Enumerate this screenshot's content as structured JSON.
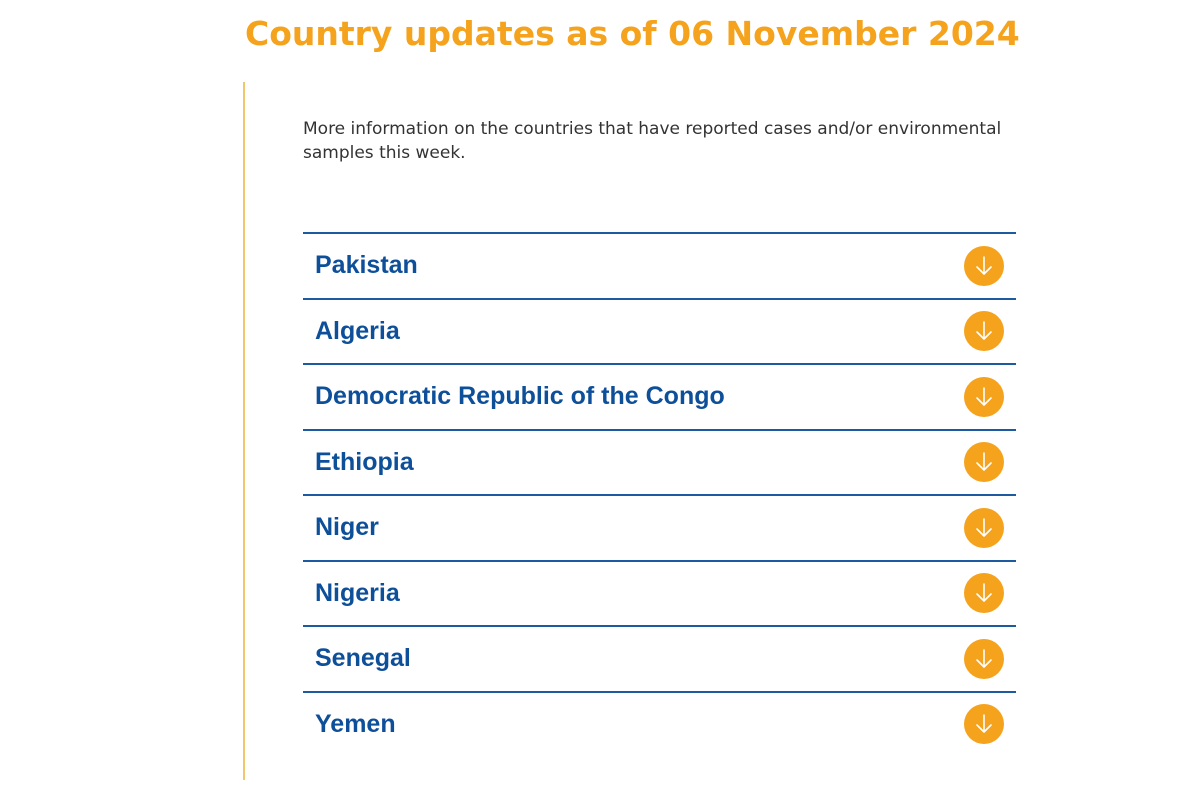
{
  "header": {
    "title": "Country updates as of 06 November 2024"
  },
  "intro": {
    "text": "More information on the countries that have reported cases and/or environmental samples this week."
  },
  "accordion": {
    "toggle_icon": "arrow-down-circle-icon",
    "items": [
      {
        "label": "Pakistan"
      },
      {
        "label": "Algeria"
      },
      {
        "label": "Democratic Republic of the Congo"
      },
      {
        "label": "Ethiopia"
      },
      {
        "label": "Niger"
      },
      {
        "label": "Nigeria"
      },
      {
        "label": "Senegal"
      },
      {
        "label": "Yemen"
      }
    ]
  },
  "colors": {
    "accent": "#f5a21c",
    "heading_blue": "#0e4f9a",
    "rule_blue": "#1e5aa0",
    "text": "#333333"
  }
}
